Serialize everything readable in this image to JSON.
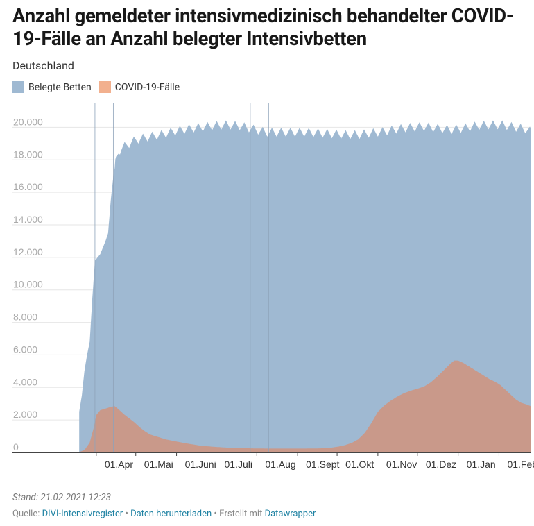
{
  "header": {
    "title": "Anzahl gemeldeter intensivmedizinisch behandelter COVID-19-Fälle an Anzahl belegter Intensivbetten",
    "subtitle": "Deutschland"
  },
  "legend": {
    "items": [
      {
        "label": "Belegte Betten",
        "color": "#9fb9d2"
      },
      {
        "label": "COVID-19-Fälle",
        "color": "#f2b08e"
      }
    ]
  },
  "colors": {
    "beds_fill": "#9fb9d2",
    "covid_fill": "#f2b08e",
    "covid_overlap_fill": "#c9998a",
    "gridline": "#e6e6e6",
    "tick_text": "#aaaaaa",
    "vline": "#8ea3ba",
    "axis": "#444444",
    "link": "#1d81a2"
  },
  "chart_data": {
    "type": "area",
    "title": "Anzahl gemeldeter intensivmedizinisch behandelter COVID-19-Fälle an Anzahl belegter Intensivbetten",
    "subtitle": "Deutschland",
    "xlabel": "",
    "ylabel": "",
    "x_unit": "days since 01 Mar 2020",
    "xlim": [
      0,
      361
    ],
    "ylim": [
      0,
      21000
    ],
    "grid": true,
    "legend_position": "top-left",
    "y_ticks": [
      0,
      2000,
      4000,
      6000,
      8000,
      10000,
      12000,
      14000,
      16000,
      18000,
      20000
    ],
    "y_tick_labels": [
      "0",
      "2.000",
      "4.000",
      "6.000",
      "8.000",
      "10.000",
      "12.000",
      "14.000",
      "16.000",
      "18.000",
      "20.000"
    ],
    "x_ticks": [
      {
        "label": "01.Apr",
        "day": 31
      },
      {
        "label": "01.Mai",
        "day": 61
      },
      {
        "label": "01.Juni",
        "day": 92
      },
      {
        "label": "01.Juli",
        "day": 122
      },
      {
        "label": "01.Aug",
        "day": 153
      },
      {
        "label": "01.Sept",
        "day": 184
      },
      {
        "label": "01.Okt",
        "day": 214
      },
      {
        "label": "01.Nov",
        "day": 245
      },
      {
        "label": "01.Dez",
        "day": 275
      },
      {
        "label": "01.Jan",
        "day": 306
      },
      {
        "label": "01.Feb",
        "day": 337
      }
    ],
    "markers": [
      {
        "day": 30,
        "label": ""
      },
      {
        "day": 44,
        "label": ""
      },
      {
        "day": 148,
        "label": ""
      },
      {
        "day": 162,
        "label": ""
      }
    ],
    "series": [
      {
        "name": "Belegte Betten",
        "color": "#9fb9d2",
        "weekly_oscillation": 550,
        "points": [
          [
            18,
            2500
          ],
          [
            20,
            3500
          ],
          [
            22,
            5000
          ],
          [
            24,
            6000
          ],
          [
            26,
            6800
          ],
          [
            28,
            9500
          ],
          [
            30,
            11800
          ],
          [
            32,
            12000
          ],
          [
            34,
            12200
          ],
          [
            36,
            12600
          ],
          [
            38,
            13000
          ],
          [
            40,
            13500
          ],
          [
            42,
            15500
          ],
          [
            44,
            17000
          ],
          [
            46,
            18000
          ],
          [
            48,
            18500
          ],
          [
            50,
            18700
          ],
          [
            54,
            18900
          ],
          [
            58,
            19100
          ],
          [
            62,
            19250
          ],
          [
            70,
            19400
          ],
          [
            80,
            19550
          ],
          [
            90,
            19750
          ],
          [
            100,
            19900
          ],
          [
            110,
            20000
          ],
          [
            120,
            20100
          ],
          [
            130,
            20150
          ],
          [
            140,
            20100
          ],
          [
            150,
            19900
          ],
          [
            160,
            19700
          ],
          [
            170,
            19700
          ],
          [
            180,
            19700
          ],
          [
            190,
            19700
          ],
          [
            200,
            19650
          ],
          [
            210,
            19600
          ],
          [
            220,
            19550
          ],
          [
            230,
            19550
          ],
          [
            240,
            19650
          ],
          [
            250,
            19750
          ],
          [
            260,
            19900
          ],
          [
            270,
            20000
          ],
          [
            280,
            20050
          ],
          [
            290,
            19950
          ],
          [
            300,
            19850
          ],
          [
            310,
            19950
          ],
          [
            320,
            20100
          ],
          [
            330,
            20150
          ],
          [
            340,
            20150
          ],
          [
            350,
            20000
          ],
          [
            357,
            19900
          ],
          [
            361,
            19750
          ]
        ]
      },
      {
        "name": "COVID-19-Fälle",
        "color": "#f2b08e",
        "points": [
          [
            18,
            20
          ],
          [
            22,
            150
          ],
          [
            26,
            600
          ],
          [
            29,
            1500
          ],
          [
            31,
            2300
          ],
          [
            34,
            2600
          ],
          [
            38,
            2700
          ],
          [
            42,
            2800
          ],
          [
            45,
            2850
          ],
          [
            48,
            2650
          ],
          [
            52,
            2350
          ],
          [
            56,
            2100
          ],
          [
            60,
            1850
          ],
          [
            64,
            1550
          ],
          [
            68,
            1300
          ],
          [
            72,
            1100
          ],
          [
            78,
            950
          ],
          [
            84,
            800
          ],
          [
            90,
            700
          ],
          [
            100,
            550
          ],
          [
            110,
            420
          ],
          [
            120,
            350
          ],
          [
            130,
            300
          ],
          [
            140,
            270
          ],
          [
            150,
            250
          ],
          [
            160,
            240
          ],
          [
            170,
            240
          ],
          [
            180,
            240
          ],
          [
            190,
            240
          ],
          [
            200,
            250
          ],
          [
            205,
            260
          ],
          [
            210,
            300
          ],
          [
            215,
            360
          ],
          [
            220,
            450
          ],
          [
            225,
            580
          ],
          [
            230,
            800
          ],
          [
            235,
            1200
          ],
          [
            240,
            1800
          ],
          [
            245,
            2500
          ],
          [
            250,
            2900
          ],
          [
            255,
            3200
          ],
          [
            260,
            3450
          ],
          [
            265,
            3650
          ],
          [
            270,
            3800
          ],
          [
            275,
            3920
          ],
          [
            280,
            4050
          ],
          [
            285,
            4300
          ],
          [
            290,
            4650
          ],
          [
            295,
            5050
          ],
          [
            300,
            5450
          ],
          [
            303,
            5650
          ],
          [
            306,
            5650
          ],
          [
            310,
            5500
          ],
          [
            314,
            5300
          ],
          [
            318,
            5100
          ],
          [
            322,
            4900
          ],
          [
            326,
            4700
          ],
          [
            330,
            4500
          ],
          [
            334,
            4350
          ],
          [
            338,
            4150
          ],
          [
            342,
            3850
          ],
          [
            346,
            3550
          ],
          [
            350,
            3250
          ],
          [
            354,
            3050
          ],
          [
            358,
            2950
          ],
          [
            361,
            2850
          ]
        ]
      }
    ]
  },
  "footer": {
    "stand": "Stand: 21.02.2021 12:23",
    "source_prefix": "Quelle:",
    "source_link": "DIVI-Intensivregister",
    "separator1": "•",
    "download_link": "Daten herunterladen",
    "separator2": "•",
    "created_text": "Erstellt mit",
    "created_link": "Datawrapper"
  }
}
